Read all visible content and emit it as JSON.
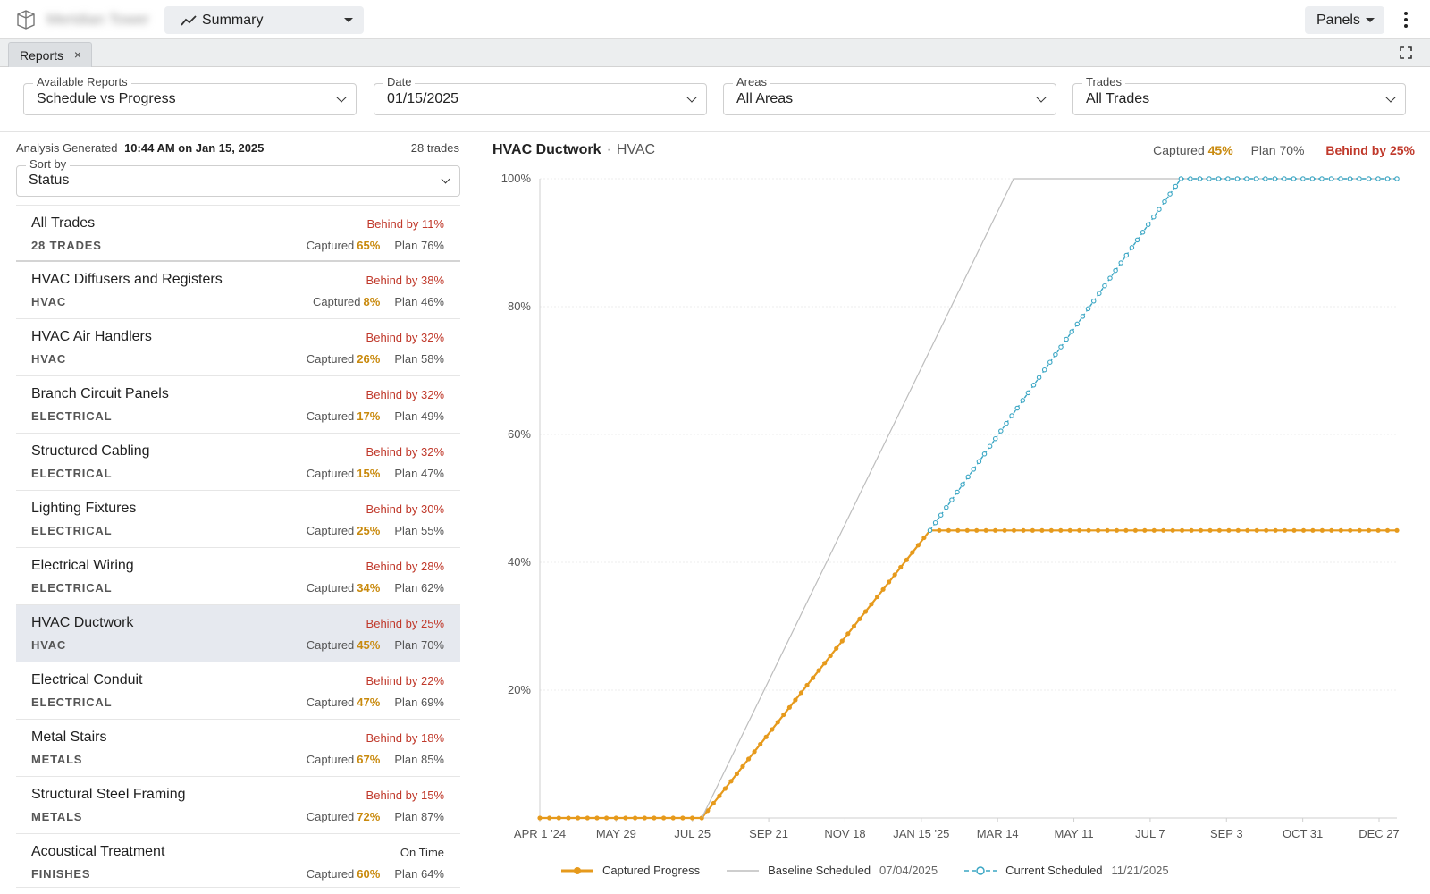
{
  "topbar": {
    "project_name": "Meridian Tower",
    "view_label": "Summary",
    "panels_label": "Panels"
  },
  "tabs": [
    {
      "label": "Reports"
    }
  ],
  "filters": {
    "report": {
      "label": "Available Reports",
      "value": "Schedule vs Progress"
    },
    "date": {
      "label": "Date",
      "value": "01/15/2025"
    },
    "areas": {
      "label": "Areas",
      "value": "All Areas"
    },
    "trades": {
      "label": "Trades",
      "value": "All Trades"
    }
  },
  "left": {
    "generated_label": "Analysis Generated",
    "generated_value": "10:44 AM on Jan 15, 2025",
    "trade_count": "28 trades",
    "sort_label": "Sort by",
    "sort_value": "Status",
    "captured_label": "Captured",
    "plan_label": "Plan",
    "rows": [
      {
        "name": "All Trades",
        "category": "28 TRADES",
        "status": "Behind by 11%",
        "captured": "65%",
        "plan": "76%"
      },
      {
        "name": "HVAC Diffusers and Registers",
        "category": "HVAC",
        "status": "Behind by 38%",
        "captured": "8%",
        "plan": "46%"
      },
      {
        "name": "HVAC Air Handlers",
        "category": "HVAC",
        "status": "Behind by 32%",
        "captured": "26%",
        "plan": "58%"
      },
      {
        "name": "Branch Circuit Panels",
        "category": "ELECTRICAL",
        "status": "Behind by 32%",
        "captured": "17%",
        "plan": "49%"
      },
      {
        "name": "Structured Cabling",
        "category": "ELECTRICAL",
        "status": "Behind by 32%",
        "captured": "15%",
        "plan": "47%"
      },
      {
        "name": "Lighting Fixtures",
        "category": "ELECTRICAL",
        "status": "Behind by 30%",
        "captured": "25%",
        "plan": "55%"
      },
      {
        "name": "Electrical Wiring",
        "category": "ELECTRICAL",
        "status": "Behind by 28%",
        "captured": "34%",
        "plan": "62%"
      },
      {
        "name": "HVAC Ductwork",
        "category": "HVAC",
        "status": "Behind by 25%",
        "captured": "45%",
        "plan": "70%"
      },
      {
        "name": "Electrical Conduit",
        "category": "ELECTRICAL",
        "status": "Behind by 22%",
        "captured": "47%",
        "plan": "69%"
      },
      {
        "name": "Metal Stairs",
        "category": "METALS",
        "status": "Behind by 18%",
        "captured": "67%",
        "plan": "85%"
      },
      {
        "name": "Structural Steel Framing",
        "category": "METALS",
        "status": "Behind by 15%",
        "captured": "72%",
        "plan": "87%"
      },
      {
        "name": "Acoustical Treatment",
        "category": "FINISHES",
        "status": "On Time",
        "captured": "60%",
        "plan": "64%"
      }
    ]
  },
  "detail": {
    "title": "HVAC Ductwork",
    "subtitle": "HVAC",
    "captured_label": "Captured",
    "captured_value": "45%",
    "plan_label": "Plan",
    "plan_value": "70%",
    "behind": "Behind by 25%"
  },
  "colors": {
    "captured": "#e69a1c",
    "baseline": "#bdbdbd",
    "current": "#3aa6c4",
    "behind": "#c0392b"
  },
  "chart_data": {
    "type": "line",
    "x_ticks": [
      "APR 1 '24",
      "MAY 29",
      "JUL 25",
      "SEP 21",
      "NOV 18",
      "JAN 15 '25",
      "MAR 14",
      "MAY 11",
      "JUL 7",
      "SEP 3",
      "OCT 31",
      "DEC 27"
    ],
    "y_ticks": [
      "20%",
      "40%",
      "60%",
      "80%",
      "100%"
    ],
    "ylim": [
      0,
      100
    ],
    "x_domain": [
      "2024-04-01",
      "2025-12-27"
    ],
    "grid": true,
    "series": [
      {
        "name": "Captured Progress",
        "style": "solid-dots",
        "points": [
          [
            "2024-04-01",
            0
          ],
          [
            "2024-07-30",
            0
          ],
          [
            "2025-01-15",
            45
          ],
          [
            "2025-12-27",
            45
          ]
        ]
      },
      {
        "name": "Baseline Scheduled",
        "date": "07/04/2025",
        "style": "solid-thin",
        "points": [
          [
            "2024-07-30",
            0
          ],
          [
            "2025-03-18",
            100
          ],
          [
            "2025-12-27",
            100
          ]
        ]
      },
      {
        "name": "Current Scheduled",
        "date": "11/21/2025",
        "style": "dashed-dots",
        "points": [
          [
            "2025-01-15",
            45
          ],
          [
            "2025-07-20",
            100
          ],
          [
            "2025-12-27",
            100
          ]
        ]
      }
    ],
    "legend_position": "bottom"
  }
}
